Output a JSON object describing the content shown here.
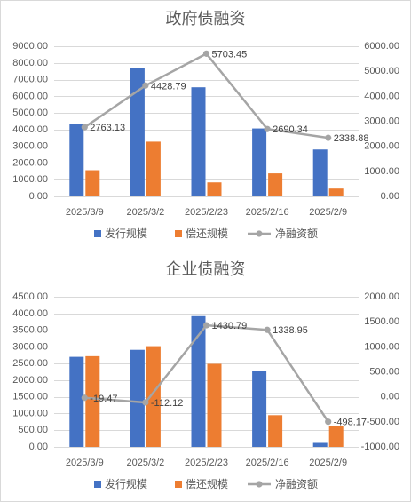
{
  "chart_data": [
    {
      "type": "bar",
      "title": "政府债融资",
      "categories": [
        "2025/3/9",
        "2025/3/2",
        "2025/2/23",
        "2025/2/16",
        "2025/2/9"
      ],
      "series": [
        {
          "name": "发行规模",
          "type": "bar",
          "axis": "left",
          "color": "#4472C4",
          "values": [
            4330,
            7710,
            6540,
            4070,
            2810
          ]
        },
        {
          "name": "偿还规模",
          "type": "bar",
          "axis": "left",
          "color": "#ED7D31",
          "values": [
            1570,
            3280,
            840,
            1380,
            470
          ]
        },
        {
          "name": "净融资额",
          "type": "line",
          "axis": "right",
          "color": "#A5A5A5",
          "values": [
            2763.13,
            4428.79,
            5703.45,
            2690.34,
            2338.88
          ]
        }
      ],
      "ylim": [
        0,
        9000
      ],
      "y_tick_labels": [
        "0.00",
        "1000.00",
        "2000.00",
        "3000.00",
        "4000.00",
        "5000.00",
        "6000.00",
        "7000.00",
        "8000.00",
        "9000.00"
      ],
      "y2lim": [
        0,
        6000
      ],
      "y2_tick_labels": [
        "0.00",
        "1000.00",
        "2000.00",
        "3000.00",
        "4000.00",
        "5000.00",
        "6000.00"
      ],
      "grid": true,
      "legend": "bottom"
    },
    {
      "type": "bar",
      "title": "企业债融资",
      "categories": [
        "2025/3/9",
        "2025/3/2",
        "2025/2/23",
        "2025/2/16",
        "2025/2/9"
      ],
      "series": [
        {
          "name": "发行规模",
          "type": "bar",
          "axis": "left",
          "color": "#4472C4",
          "values": [
            2700,
            2910,
            3920,
            2290,
            120
          ]
        },
        {
          "name": "偿还规模",
          "type": "bar",
          "axis": "left",
          "color": "#ED7D31",
          "values": [
            2720,
            3020,
            2490,
            950,
            620
          ]
        },
        {
          "name": "净融资额",
          "type": "line",
          "axis": "right",
          "color": "#A5A5A5",
          "values": [
            -19.47,
            -112.12,
            1430.79,
            1338.95,
            -498.17
          ]
        }
      ],
      "ylim": [
        0,
        4500
      ],
      "y_tick_labels": [
        "0.00",
        "500.00",
        "1000.00",
        "1500.00",
        "2000.00",
        "2500.00",
        "3000.00",
        "3500.00",
        "4000.00",
        "4500.00"
      ],
      "y2lim": [
        -1000,
        2000
      ],
      "y2_tick_labels": [
        "-1000.00",
        "-500.00",
        "0.00",
        "500.00",
        "1000.00",
        "1500.00",
        "2000.00"
      ],
      "grid": true,
      "legend": "bottom"
    }
  ]
}
